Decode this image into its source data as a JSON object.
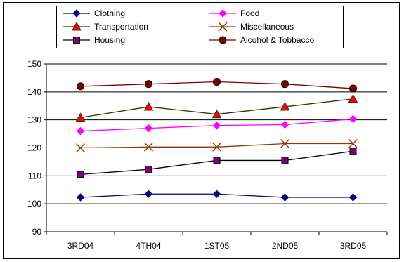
{
  "chart_data": {
    "type": "line",
    "categories": [
      "3RD04",
      "4TH04",
      "1ST05",
      "2ND05",
      "3RD05"
    ],
    "ylim": [
      90,
      150
    ],
    "yticks": [
      90,
      100,
      110,
      120,
      130,
      140,
      150
    ],
    "grid": true,
    "legend": "top",
    "series": [
      {
        "name": "Clothing",
        "values": [
          102.3,
          103.5,
          103.5,
          102.3,
          102.3
        ],
        "color": "#000080",
        "marker": "diamond"
      },
      {
        "name": "Food",
        "values": [
          126.0,
          127.0,
          128.0,
          128.3,
          130.3
        ],
        "color": "#ff00ff",
        "marker": "diamond"
      },
      {
        "name": "Transportation",
        "values": [
          130.8,
          134.7,
          132.0,
          134.7,
          137.5
        ],
        "color": "#333300",
        "marker": "triangle",
        "fill": "#ff0000"
      },
      {
        "name": "Miscellaneous",
        "values": [
          120.0,
          120.3,
          120.3,
          121.5,
          121.5
        ],
        "color": "#993300",
        "marker": "x"
      },
      {
        "name": "Housing",
        "values": [
          110.5,
          112.3,
          115.5,
          115.5,
          118.8
        ],
        "color": "#000000",
        "marker": "square",
        "fill": "#800080"
      },
      {
        "name": "Alcohol & Tobbacco",
        "values": [
          142.0,
          142.8,
          143.6,
          142.8,
          141.2
        ],
        "color": "#800000",
        "marker": "circle"
      }
    ]
  }
}
